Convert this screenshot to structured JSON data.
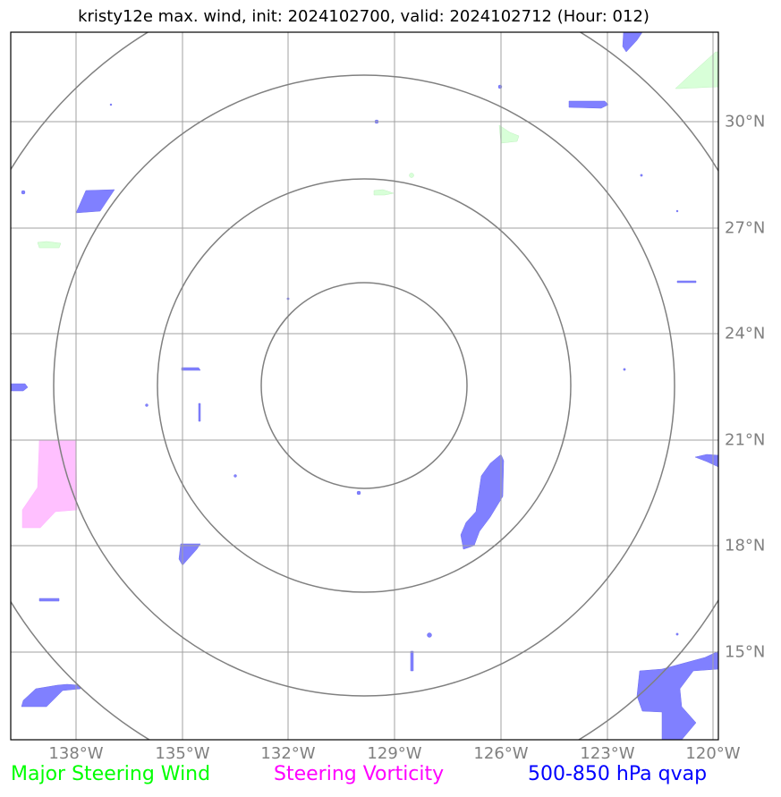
{
  "title": "kristy12e max. wind, init: 2024102700, valid: 2024102712 (Hour: 012)",
  "map": {
    "lon_labels": [
      "138°W",
      "135°W",
      "132°W",
      "129°W",
      "126°W",
      "123°W",
      "120°W"
    ],
    "lat_labels": [
      "30°N",
      "27°N",
      "24°N",
      "21°N",
      "18°N",
      "15°N"
    ],
    "gridline_color": "#a0a0a0",
    "range_ring_color": "#808080",
    "range_ring_count": 4
  },
  "fields": {
    "qvap_color": "#8080ff",
    "vorticity_color": "#ffc0ff",
    "wind_color": "#d8ffd8"
  },
  "legend": [
    {
      "label": "Major Steering Wind",
      "color": "#00ff00"
    },
    {
      "label": "Steering Vorticity",
      "color": "#ff00ff"
    },
    {
      "label": "500-850 hPa qvap",
      "color": "#0000ff"
    }
  ]
}
